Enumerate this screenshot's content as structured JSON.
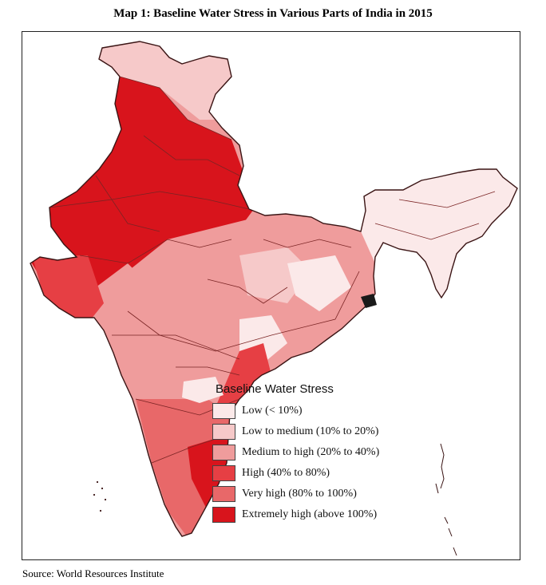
{
  "title": "Map 1: Baseline Water Stress in Various Parts of India in 2015",
  "source": "Source: World Resources Institute",
  "legend": {
    "title": "Baseline Water Stress",
    "items": [
      {
        "label": "Low (< 10%)",
        "color": "#fbe9e9"
      },
      {
        "label": "Low to medium (10% to 20%)",
        "color": "#f6c9c9"
      },
      {
        "label": "Medium to high (20% to 40%)",
        "color": "#ef9c9c"
      },
      {
        "label": "High (40% to 80%)",
        "color": "#e63f44"
      },
      {
        "label": "Very high (80% to 100%)",
        "color": "#e86869"
      },
      {
        "label": "Extremely high (above 100%)",
        "color": "#d8141c"
      }
    ]
  },
  "colors": {
    "outline": "#3a1414",
    "boundary": "#7a2424",
    "low": "#fbe9e9",
    "low_medium": "#f6c9c9",
    "medium_high": "#ef9c9c",
    "high": "#e63f44",
    "very_high": "#e86869",
    "extremely_high": "#d8141c",
    "no_data": "#1a1a1a"
  }
}
